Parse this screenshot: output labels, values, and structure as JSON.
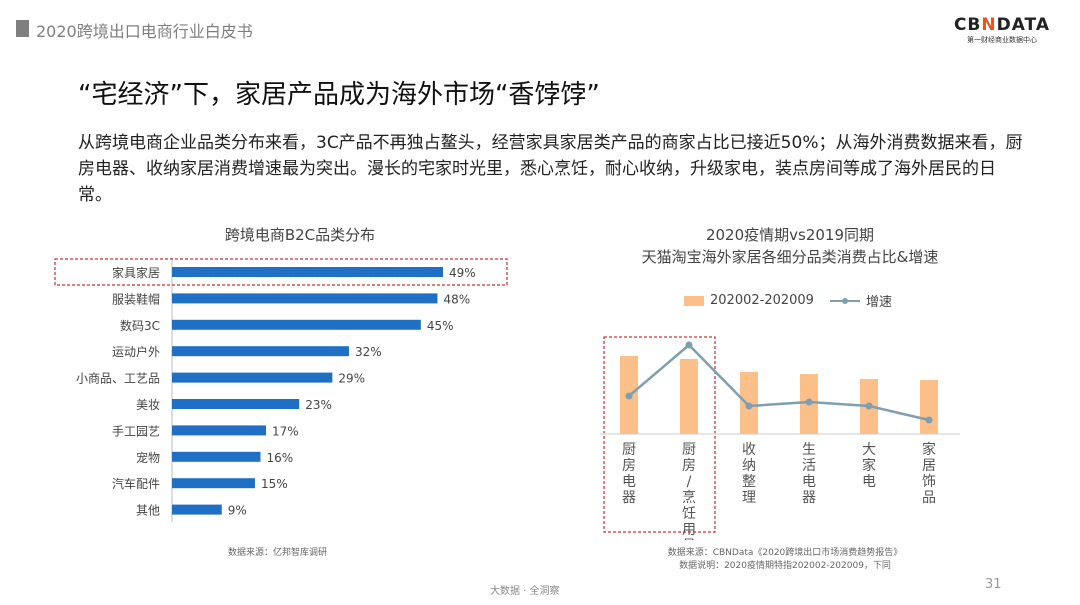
{
  "header": {
    "title": "2020跨境出口电商行业白皮书",
    "logo": "CBNDATA",
    "logo_sub": "第一财经商业数据中心"
  },
  "title": "“宅经济”下，家居产品成为海外市场“香饽饽”",
  "description": "从跨境电商企业品类分布来看，3C产品不再独占鳌头，经营家具家居类产品的商家占比已接近50%；从海外消费数据来看，厨房电器、收纳家居消费增速最为突出。漫长的宅家时光里，悉心烹饪，耐心收纳，升级家电，装点房间等成了海外居民的日常。",
  "footer": "大数据 · 全洞察",
  "page_number": "31",
  "chart_data": [
    {
      "type": "bar",
      "orientation": "horizontal",
      "title": "跨境电商B2C品类分布",
      "categories": [
        "家具家居",
        "服装鞋帽",
        "数码3C",
        "运动户外",
        "小商品、工艺品",
        "美妆",
        "手工园艺",
        "宠物",
        "汽车配件",
        "其他"
      ],
      "values": [
        49,
        48,
        45,
        32,
        29,
        23,
        17,
        16,
        15,
        9
      ],
      "labels": [
        "49%",
        "48%",
        "45%",
        "32%",
        "29%",
        "23%",
        "17%",
        "16%",
        "15%",
        "9%"
      ],
      "highlight": "家具家居",
      "color": "#1f6fc5",
      "highlight_color": "#c00000",
      "source": "数据来源：亿邦智库调研"
    },
    {
      "type": "bar+line",
      "title": "2020疫情期vs2019同期",
      "subtitle": "天猫淘宝海外家居各细分品类消费占比&增速",
      "categories": [
        "厨房电器",
        "厨房/烹饪用具",
        "收纳整理",
        "生活电器",
        "大家电",
        "家居饰品"
      ],
      "series": [
        {
          "name": "202002-202009",
          "type": "bar",
          "color": "#fbbf8a",
          "values": [
            78,
            75,
            62,
            60,
            55,
            54
          ]
        },
        {
          "name": "增速",
          "type": "line",
          "color": "#7f9fb0",
          "values": [
            38,
            89,
            28,
            32,
            28,
            14
          ]
        }
      ],
      "highlight": [
        "厨房电器",
        "厨房/烹饪用具"
      ],
      "source": "数据来源：CBNData《2020跨境出口市场消费趋势报告》",
      "note": "数据说明：2020疫情期特指202002-202009，下同"
    }
  ]
}
